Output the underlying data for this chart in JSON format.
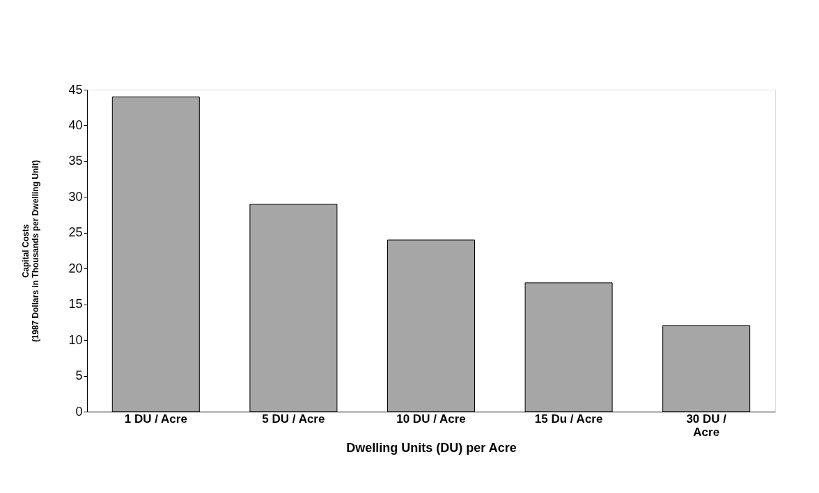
{
  "chart_data": {
    "type": "bar",
    "xlabel": "Dwelling Units (DU) per Acre",
    "ylabel": "Capital Costs\n(1987 Dollars in Thousands per Dwelling Unit)",
    "categories": [
      "1 DU / Acre",
      "5 DU / Acre",
      "10 DU / Acre",
      "15 Du / Acre",
      "30 DU /\nAcre"
    ],
    "values": [
      44,
      29,
      24,
      18,
      12
    ],
    "color": "#a6a6a6",
    "ylim": [
      0,
      45
    ],
    "yticks": [
      0,
      5,
      10,
      15,
      20,
      25,
      30,
      35,
      40,
      45
    ],
    "grid": false
  }
}
